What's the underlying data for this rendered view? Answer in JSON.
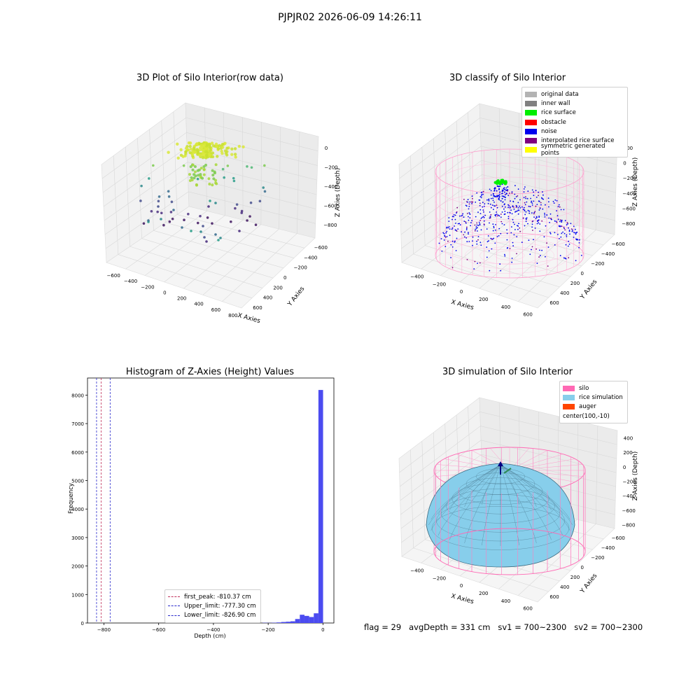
{
  "suptitle": "PJPJR02 2026-06-09 14:26:11",
  "panels": {
    "raw": {
      "title": "3D Plot of Silo Interior(row data)",
      "xlabel": "X Axies",
      "ylabel": "Y Axies",
      "zlabel": "Z Axies (Depth)",
      "xticks": [
        "−600",
        "−400",
        "−200",
        "0",
        "200",
        "400",
        "600",
        "800"
      ],
      "yticks": [
        "600",
        "400",
        "200",
        "0",
        "−200",
        "−400",
        "−600"
      ],
      "zticks": [
        "0",
        "−200",
        "−400",
        "−600",
        "−800"
      ]
    },
    "classify": {
      "title": "3D classify of Silo Interior",
      "xlabel": "X Axies",
      "ylabel": "Y Axies",
      "zlabel": "Z Axies (Depth)",
      "xticks": [
        "−400",
        "−200",
        "0",
        "200",
        "400",
        "600"
      ],
      "yticks": [
        "600",
        "400",
        "200",
        "0",
        "−200",
        "−400",
        "−600"
      ],
      "zticks": [
        "200",
        "0",
        "−200",
        "−400",
        "−600",
        "−800"
      ],
      "legend": [
        {
          "label": "original data",
          "color": "#b3b3b3"
        },
        {
          "label": "inner wall",
          "color": "#808080"
        },
        {
          "label": "rice surface",
          "color": "#00ee00"
        },
        {
          "label": "obstacle",
          "color": "#ff0000"
        },
        {
          "label": "noise",
          "color": "#0000ee"
        },
        {
          "label": "interpolated rice surface",
          "color": "#800080"
        },
        {
          "label": "symmetric generated points",
          "color": "#ffff00"
        }
      ]
    },
    "simulation": {
      "title": "3D simulation of Silo Interior",
      "xlabel": "X Axies",
      "ylabel": "Y Axies",
      "zlabel": "Z Axies (Depth)",
      "xticks": [
        "−400",
        "−200",
        "0",
        "200",
        "400",
        "600"
      ],
      "yticks": [
        "600",
        "400",
        "200",
        "0",
        "−200",
        "−400",
        "−600"
      ],
      "zticks": [
        "400",
        "200",
        "0",
        "−200",
        "−400",
        "−600",
        "−800"
      ],
      "legend": [
        {
          "label": "silo",
          "color": "#ff69b4"
        },
        {
          "label": "rice simulation",
          "color": "#87ceeb"
        },
        {
          "label": "auger",
          "color": "#ff4500"
        },
        {
          "label": "center(100,-10)",
          "color": ""
        }
      ]
    }
  },
  "footer": "flag = 29   avgDepth = 331 cm   sv1 = 700~2300   sv2 = 700~2300",
  "chart_data": {
    "type": "bar",
    "title": "Histogram of Z-Axies (Height) Values",
    "xlabel": "Depth (cm)",
    "ylabel": "Frequency",
    "xlim": [
      -860,
      40
    ],
    "ylim": [
      0,
      8600
    ],
    "xticks": [
      -800,
      -600,
      -400,
      -200,
      0
    ],
    "yticks": [
      0,
      1000,
      2000,
      3000,
      4000,
      5000,
      6000,
      7000,
      8000
    ],
    "bin_width": 17,
    "bins": [
      {
        "x": -212,
        "count": 8
      },
      {
        "x": -195,
        "count": 5
      },
      {
        "x": -178,
        "count": 10
      },
      {
        "x": -161,
        "count": 20
      },
      {
        "x": -144,
        "count": 35
      },
      {
        "x": -127,
        "count": 45
      },
      {
        "x": -110,
        "count": 60
      },
      {
        "x": -93,
        "count": 140
      },
      {
        "x": -76,
        "count": 290
      },
      {
        "x": -59,
        "count": 250
      },
      {
        "x": -42,
        "count": 210
      },
      {
        "x": -25,
        "count": 340
      },
      {
        "x": -8,
        "count": 8180
      }
    ],
    "bar_color": "#4b4bf0",
    "vlines": [
      {
        "label": "first_peak: -810.37 cm",
        "x": -810.37,
        "color": "#c0305a"
      },
      {
        "label": "Upper_limit: -777.30 cm",
        "x": -777.3,
        "color": "#2a2acc"
      },
      {
        "label": "Lower_limit: -826.90 cm",
        "x": -826.9,
        "color": "#2a2acc"
      }
    ]
  }
}
